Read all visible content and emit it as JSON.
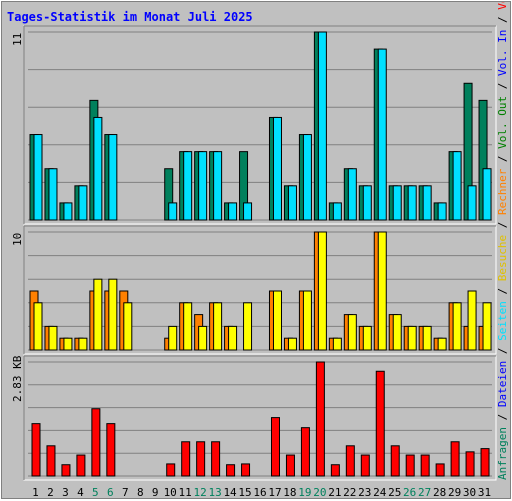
{
  "title": "Tages-Statistik im Monat Juli 2025",
  "colors": {
    "title": "#0000ff",
    "panel_bg": "#c0c0c0",
    "grid": "#808080",
    "hits": "#00805c",
    "files": "#00e0ff",
    "sites": "#ffff00",
    "visits": "#ff8000",
    "kbytes": "#ff0000",
    "weekend": "#00805c",
    "weekday": "#000000",
    "legend_sep": "#000000"
  },
  "legend": {
    "top": [
      {
        "text": "Anfragen",
        "color": "#00805c"
      },
      {
        "text": " / ",
        "color": "#000000"
      },
      {
        "text": "Dateien",
        "color": "#0000ff"
      },
      {
        "text": " / ",
        "color": "#000000"
      },
      {
        "text": "Seiten",
        "color": "#00e0ff"
      },
      {
        "text": " / ",
        "color": "#000000"
      },
      {
        "text": "Besuche",
        "color": "#e0c000"
      },
      {
        "text": " / ",
        "color": "#000000"
      },
      {
        "text": "Rechner",
        "color": "#ff8000"
      },
      {
        "text": " / ",
        "color": "#000000"
      },
      {
        "text": "Vol. Out",
        "color": "#008000"
      },
      {
        "text": " / ",
        "color": "#000000"
      },
      {
        "text": "Vol. In",
        "color": "#0000ff"
      },
      {
        "text": " / ",
        "color": "#000000"
      },
      {
        "text": "Volumen",
        "color": "#ff0000"
      }
    ]
  },
  "chart_data": [
    {
      "type": "bar",
      "panel": "top",
      "ymax_label": "11",
      "ylim": [
        0,
        11
      ],
      "categories": [
        "1",
        "2",
        "3",
        "4",
        "5",
        "6",
        "7",
        "8",
        "9",
        "10",
        "11",
        "12",
        "13",
        "14",
        "15",
        "16",
        "17",
        "18",
        "19",
        "20",
        "21",
        "22",
        "23",
        "24",
        "25",
        "26",
        "27",
        "28",
        "29",
        "30",
        "31"
      ],
      "weekend_days": [
        "5",
        "6",
        "12",
        "13",
        "19",
        "20",
        "26",
        "27"
      ],
      "series": [
        {
          "key": "hits",
          "values": [
            5,
            3,
            1,
            2,
            7,
            5,
            0,
            0,
            0,
            3,
            4,
            4,
            4,
            1,
            4,
            0,
            6,
            2,
            5,
            11,
            1,
            3,
            2,
            10,
            2,
            2,
            2,
            1,
            4,
            8,
            7
          ]
        },
        {
          "key": "files",
          "values": [
            5,
            3,
            1,
            2,
            6,
            5,
            0,
            0,
            0,
            1,
            4,
            4,
            4,
            1,
            1,
            0,
            6,
            2,
            5,
            11,
            1,
            3,
            2,
            10,
            2,
            2,
            2,
            1,
            4,
            2,
            3
          ]
        }
      ]
    },
    {
      "type": "bar",
      "panel": "middle",
      "ymax_label": "10",
      "ylim": [
        0,
        10
      ],
      "categories": [
        "1",
        "2",
        "3",
        "4",
        "5",
        "6",
        "7",
        "8",
        "9",
        "10",
        "11",
        "12",
        "13",
        "14",
        "15",
        "16",
        "17",
        "18",
        "19",
        "20",
        "21",
        "22",
        "23",
        "24",
        "25",
        "26",
        "27",
        "28",
        "29",
        "30",
        "31"
      ],
      "series": [
        {
          "key": "visits",
          "values": [
            5,
            2,
            1,
            1,
            5,
            5,
            5,
            0,
            0,
            1,
            4,
            3,
            4,
            2,
            0,
            0,
            5,
            1,
            5,
            10,
            1,
            3,
            2,
            10,
            3,
            2,
            2,
            1,
            4,
            2,
            2
          ]
        },
        {
          "key": "sites",
          "values": [
            4,
            2,
            1,
            1,
            6,
            6,
            4,
            0,
            0,
            2,
            4,
            2,
            4,
            2,
            4,
            0,
            5,
            1,
            5,
            10,
            1,
            3,
            2,
            10,
            3,
            2,
            2,
            1,
            4,
            5,
            4
          ]
        }
      ]
    },
    {
      "type": "bar",
      "panel": "bottom",
      "ymax_label": "2.83 KB",
      "ylim": [
        0,
        2.83
      ],
      "categories": [
        "1",
        "2",
        "3",
        "4",
        "5",
        "6",
        "7",
        "8",
        "9",
        "10",
        "11",
        "12",
        "13",
        "14",
        "15",
        "16",
        "17",
        "18",
        "19",
        "20",
        "21",
        "22",
        "23",
        "24",
        "25",
        "26",
        "27",
        "28",
        "29",
        "30",
        "31"
      ],
      "series": [
        {
          "key": "kbytes",
          "values": [
            1.3,
            0.75,
            0.28,
            0.52,
            1.67,
            1.3,
            0,
            0,
            0,
            0.3,
            0.85,
            0.85,
            0.85,
            0.28,
            0.3,
            0,
            1.45,
            0.52,
            1.2,
            2.83,
            0.28,
            0.75,
            0.52,
            2.6,
            0.75,
            0.52,
            0.52,
            0.3,
            0.85,
            0.6,
            0.68
          ]
        }
      ]
    }
  ]
}
